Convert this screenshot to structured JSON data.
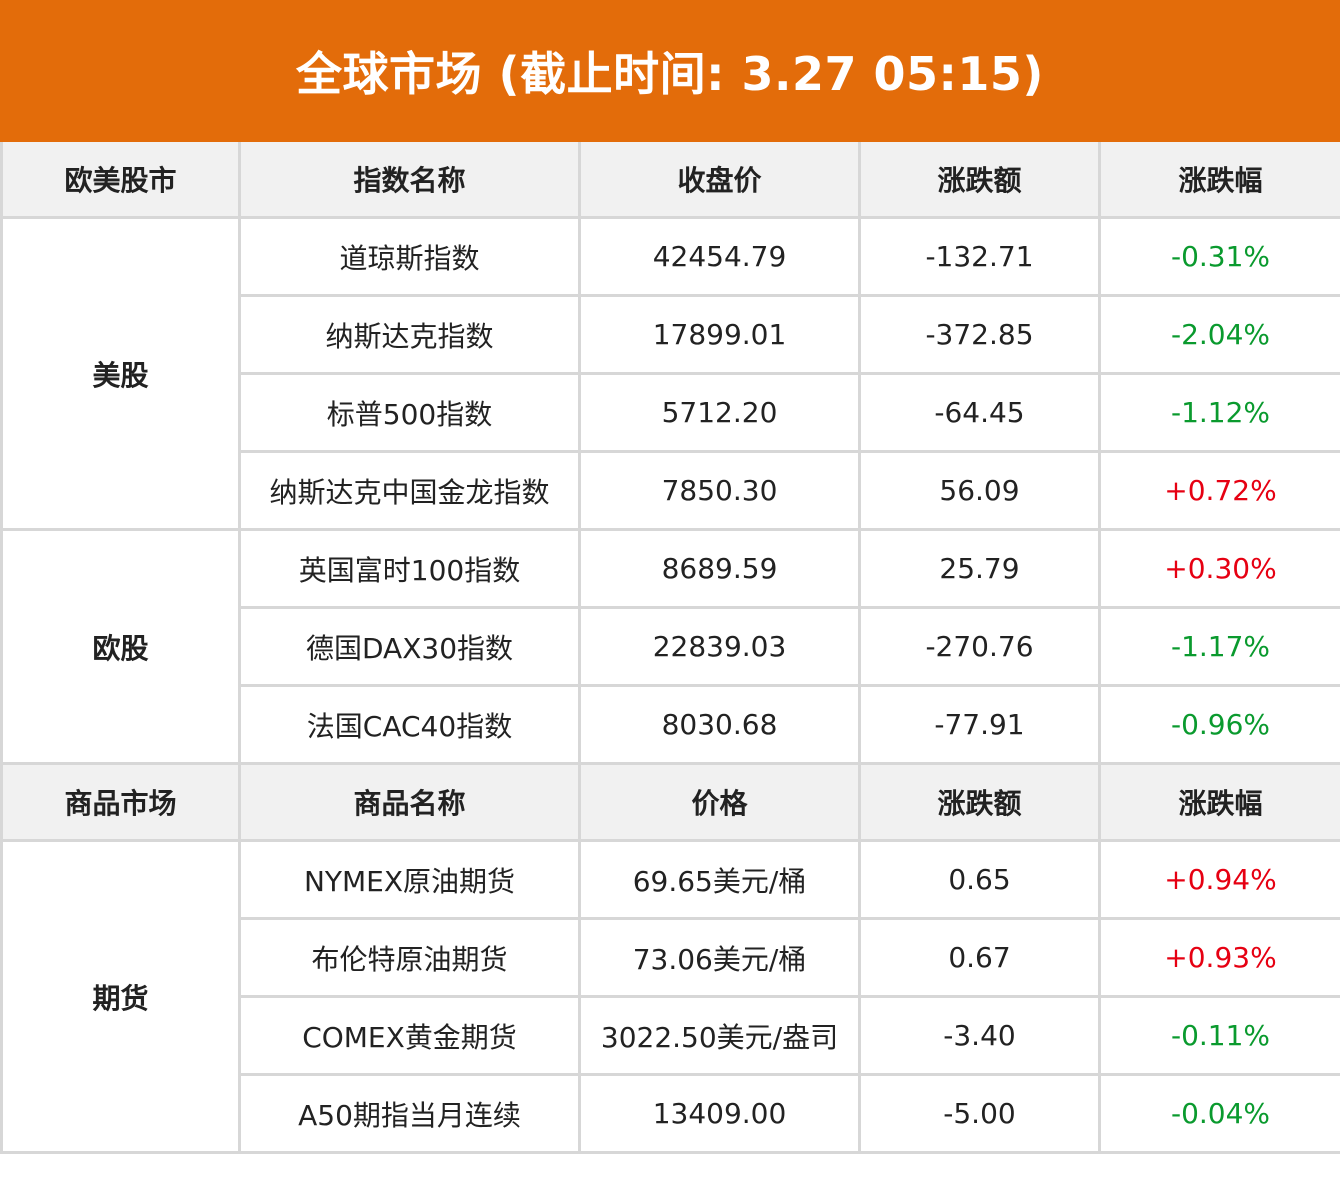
{
  "title": "全球市场 (截止时间: 3.27 05:15)",
  "colors": {
    "title_bg": "#e36c0a",
    "up": "#e60012",
    "down": "#0a9a2e",
    "header_bg": "#f1f1f1"
  },
  "chart_data": {
    "type": "table",
    "sections": [
      {
        "headers": [
          "欧美股市",
          "指数名称",
          "收盘价",
          "涨跌额",
          "涨跌幅"
        ],
        "groups": [
          {
            "name": "美股",
            "rows": [
              [
                "道琼斯指数",
                "42454.79",
                "-132.71",
                "-0.31%"
              ],
              [
                "纳斯达克指数",
                "17899.01",
                "-372.85",
                "-2.04%"
              ],
              [
                "标普500指数",
                "5712.20",
                "-64.45",
                "-1.12%"
              ],
              [
                "纳斯达克中国金龙指数",
                "7850.30",
                "56.09",
                "+0.72%"
              ]
            ]
          },
          {
            "name": "欧股",
            "rows": [
              [
                "英国富时100指数",
                "8689.59",
                "25.79",
                "+0.30%"
              ],
              [
                "德国DAX30指数",
                "22839.03",
                "-270.76",
                "-1.17%"
              ],
              [
                "法国CAC40指数",
                "8030.68",
                "-77.91",
                "-0.96%"
              ]
            ]
          }
        ]
      },
      {
        "headers": [
          "商品市场",
          "商品名称",
          "价格",
          "涨跌额",
          "涨跌幅"
        ],
        "groups": [
          {
            "name": "期货",
            "rows": [
              [
                "NYMEX原油期货",
                "69.65美元/桶",
                "0.65",
                "+0.94%"
              ],
              [
                "布伦特原油期货",
                "73.06美元/桶",
                "0.67",
                "+0.93%"
              ],
              [
                "COMEX黄金期货",
                "3022.50美元/盎司",
                "-3.40",
                "-0.11%"
              ],
              [
                "A50期指当月连续",
                "13409.00",
                "-5.00",
                "-0.04%"
              ]
            ]
          }
        ]
      }
    ]
  }
}
